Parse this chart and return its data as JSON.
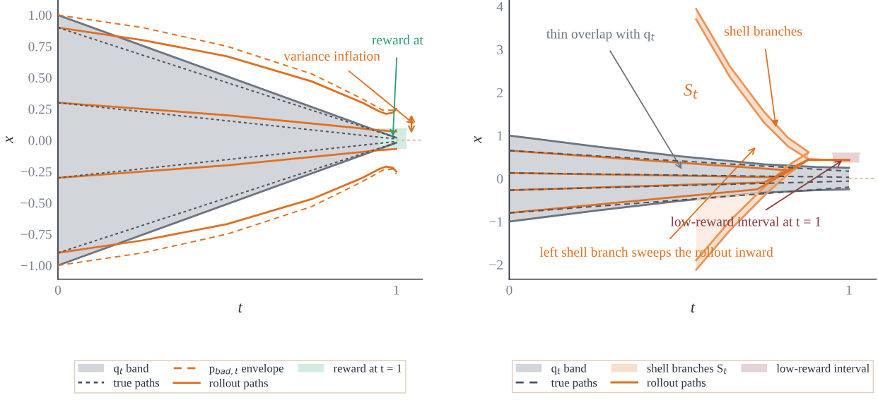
{
  "chart_data": [
    {
      "type": "line",
      "xlabel": "t",
      "ylabel": "x",
      "xlim": [
        0,
        1.077
      ],
      "ylim": [
        -1.11,
        1.12
      ],
      "xticks": [
        0,
        1
      ],
      "yticks": [
        {
          "value": -1,
          "label": "−1.00"
        },
        {
          "value": -0.75,
          "label": "−0.75"
        },
        {
          "value": -0.5,
          "label": "−0.50"
        },
        {
          "value": -0.25,
          "label": "−0.25"
        },
        {
          "value": 0,
          "label": "0.00"
        },
        {
          "value": 0.25,
          "label": "0.25"
        },
        {
          "value": 0.5,
          "label": "0.50"
        },
        {
          "value": 0.75,
          "label": "0.75"
        },
        {
          "value": 1,
          "label": "1.00"
        }
      ],
      "grid": false,
      "legend": "bottom",
      "series": [
        {
          "name": "q$_{t}$ band",
          "color": "#6b7580",
          "line_style": "solid",
          "x": [
            0,
            1
          ],
          "values": [
            1,
            0.02
          ],
          "lower": [
            -1,
            -0.02
          ],
          "upper": [
            1,
            0.02
          ]
        },
        {
          "color": "#6b7580",
          "line_style": "solid",
          "x": [
            0,
            1
          ],
          "values": [
            -1,
            -0.02
          ]
        },
        {
          "name": "true paths",
          "color": "#4a5260",
          "line_style": "dotted",
          "x": [
            0,
            1
          ],
          "values": [
            0.9,
            0.02
          ]
        },
        {
          "color": "#4a5260",
          "line_style": "dotted",
          "x": [
            0,
            1
          ],
          "values": [
            0.3,
            0.01
          ]
        },
        {
          "color": "#4a5260",
          "line_style": "dotted",
          "x": [
            0,
            1
          ],
          "values": [
            -0.3,
            -0.01
          ]
        },
        {
          "color": "#4a5260",
          "line_style": "dotted",
          "x": [
            0,
            1
          ],
          "values": [
            -0.9,
            -0.02
          ]
        },
        {
          "name": "p$_{bad,t}$ envelope",
          "color": "#e07020",
          "line_style": "dashed",
          "x": [
            0,
            0.25,
            0.5,
            0.75,
            0.9,
            0.96,
            0.99,
            1.0
          ],
          "values": [
            1.0,
            0.9,
            0.75,
            0.53,
            0.33,
            0.24,
            0.24,
            0.27
          ]
        },
        {
          "color": "#e07020",
          "line_style": "dashed",
          "x": [
            0,
            0.25,
            0.5,
            0.75,
            0.9,
            0.96,
            0.99,
            1.0
          ],
          "values": [
            -1.0,
            -0.9,
            -0.75,
            -0.53,
            -0.33,
            -0.24,
            -0.23,
            -0.27
          ]
        },
        {
          "name": "rollout paths",
          "color": "#e07020",
          "line_style": "solid",
          "x": [
            0,
            0.25,
            0.5,
            0.75,
            0.9,
            0.95,
            0.97,
            0.99,
            1.0
          ],
          "values": [
            0.9,
            0.8,
            0.67,
            0.47,
            0.3,
            0.23,
            0.21,
            0.22,
            0.25
          ]
        },
        {
          "color": "#e07020",
          "line_style": "solid",
          "x": [
            0,
            0.5,
            0.8,
            0.95,
            1.0
          ],
          "values": [
            0.3,
            0.2,
            0.12,
            0.08,
            0.07
          ]
        },
        {
          "color": "#e07020",
          "line_style": "solid",
          "x": [
            0,
            0.5,
            0.8,
            0.95,
            1.0
          ],
          "values": [
            -0.3,
            -0.2,
            -0.12,
            -0.08,
            -0.07
          ]
        },
        {
          "color": "#e07020",
          "line_style": "solid",
          "x": [
            0,
            0.25,
            0.5,
            0.75,
            0.9,
            0.95,
            0.97,
            0.99,
            1.0
          ],
          "values": [
            -0.9,
            -0.8,
            -0.67,
            -0.47,
            -0.3,
            -0.23,
            -0.21,
            -0.22,
            -0.25
          ]
        },
        {
          "name": "reward at t = 1",
          "color": "#d3ece2",
          "line_style": "solid",
          "x": [
            0.95,
            1.03
          ],
          "values": [
            0.09,
            0.09
          ],
          "lower": [
            -0.07,
            -0.07
          ],
          "upper": [
            0.09,
            0.09
          ]
        },
        {
          "color": "#e8b898",
          "line_style": "dotted",
          "x": [
            1.0,
            1.077
          ],
          "values": [
            0,
            0
          ]
        }
      ],
      "annotations": [
        "variance inflation",
        {
          "text": "reward at",
          "x": 0.99,
          "y": 0.03
        }
      ]
    },
    {
      "type": "line",
      "xlabel": "t",
      "ylabel": "x",
      "xlim": [
        0,
        1.08
      ],
      "ylim": [
        -2.34,
        4.15
      ],
      "xticks": [
        0,
        1
      ],
      "yticks": [
        {
          "value": -2,
          "label": "−2"
        },
        {
          "value": -1,
          "label": "−1"
        },
        0,
        1,
        2,
        3,
        4
      ],
      "grid": false,
      "legend": "bottom",
      "series": [
        {
          "name": "q$_{t}$ band",
          "color": "#6b7580",
          "line_style": "solid",
          "x": [
            0,
            0.25,
            0.5,
            0.75,
            0.9,
            1.0
          ],
          "values": [
            1,
            0.75,
            0.52,
            0.33,
            0.27,
            0.25
          ],
          "lower": [
            -1,
            -0.75,
            -0.52,
            -0.33,
            -0.27,
            -0.25
          ],
          "upper": [
            1,
            0.75,
            0.52,
            0.33,
            0.27,
            0.25
          ]
        },
        {
          "color": "#6b7580",
          "line_style": "solid",
          "x": [
            0,
            0.25,
            0.5,
            0.75,
            0.9,
            1.0
          ],
          "values": [
            -1,
            -0.75,
            -0.52,
            -0.33,
            -0.27,
            -0.25
          ]
        },
        {
          "name": "true paths",
          "color": "#4a5260",
          "line_style": "dashed",
          "x": [
            0,
            1
          ],
          "values": [
            0.65,
            0.17
          ]
        },
        {
          "color": "#4a5260",
          "line_style": "dashed",
          "x": [
            0,
            1
          ],
          "values": [
            0.13,
            0.03
          ]
        },
        {
          "color": "#4a5260",
          "line_style": "dashed",
          "x": [
            0,
            1
          ],
          "values": [
            -0.27,
            -0.06
          ]
        },
        {
          "color": "#4a5260",
          "line_style": "dashed",
          "x": [
            0,
            1
          ],
          "values": [
            -0.8,
            -0.2
          ]
        },
        {
          "name": "shell branches S$_{t}$",
          "color": "#e8955a",
          "line_style": "solid",
          "x": [
            0.55,
            0.65,
            0.75,
            0.82,
            0.88
          ],
          "values": [
            3.94,
            2.6,
            1.55,
            0.95,
            0.62
          ],
          "lower": [
            3.7,
            2.35,
            1.3,
            0.75,
            0.45
          ],
          "upper": [
            3.94,
            2.6,
            1.55,
            0.95,
            0.62
          ]
        },
        {
          "color": "#e8955a",
          "line_style": "solid",
          "x": [
            0.55,
            0.65,
            0.75,
            0.82,
            0.88
          ],
          "values": [
            3.7,
            2.35,
            1.3,
            0.75,
            0.45
          ]
        },
        {
          "color": "#e8955a",
          "line_style": "solid",
          "x": [
            0.55,
            0.65,
            0.75,
            0.82,
            0.88
          ],
          "values": [
            -1.9,
            -0.98,
            -0.2,
            0.3,
            0.6
          ],
          "lower": [
            -2.12,
            -1.2,
            -0.4,
            0.1,
            0.44
          ],
          "upper": [
            -1.9,
            -0.98,
            -0.2,
            0.3,
            0.6
          ]
        },
        {
          "color": "#e8955a",
          "line_style": "solid",
          "x": [
            0.55,
            0.65,
            0.75,
            0.82,
            0.88
          ],
          "values": [
            -2.12,
            -1.2,
            -0.4,
            0.1,
            0.44
          ]
        },
        {
          "color": "#f3c4a3",
          "line_style": "solid",
          "x": [
            0.55,
            0.65,
            0.73
          ],
          "values": [
            -0.48,
            -0.41,
            -0.35
          ],
          "lower": [
            -1.9,
            -0.98,
            -0.35
          ],
          "upper": [
            -0.48,
            -0.41,
            -0.35
          ]
        },
        {
          "name": "rollout paths",
          "color": "#e07020",
          "line_style": "solid",
          "x": [
            0,
            0.82,
            0.88,
            1.0
          ],
          "values": [
            0.65,
            0.19,
            0.44,
            0.43
          ]
        },
        {
          "color": "#e07020",
          "line_style": "solid",
          "x": [
            0,
            0.79,
            0.88,
            1.0
          ],
          "values": [
            0.13,
            0.03,
            0.44,
            0.43
          ]
        },
        {
          "color": "#e07020",
          "line_style": "solid",
          "x": [
            0,
            0.75,
            0.88,
            1.0
          ],
          "values": [
            -0.27,
            -0.09,
            0.44,
            0.43
          ]
        },
        {
          "color": "#e07020",
          "line_style": "solid",
          "x": [
            0,
            0.73,
            0.88,
            1.0
          ],
          "values": [
            -0.8,
            -0.25,
            0.44,
            0.43
          ]
        },
        {
          "name": "low-reward interval",
          "color": "#e6d3d7",
          "line_style": "solid",
          "x": [
            0.952,
            1.03
          ],
          "values": [
            0.58,
            0.58
          ],
          "lower": [
            0.37,
            0.37
          ],
          "upper": [
            0.58,
            0.58
          ]
        },
        {
          "color": "#e8b898",
          "line_style": "dotted",
          "x": [
            1.0,
            1.08
          ],
          "values": [
            0,
            0
          ]
        }
      ],
      "annotations": [
        "thin overlap with q$_{t}$",
        {
          "text": "shell branches",
          "x": 0.785,
          "y": 1.19
        },
        "S$_{t}$",
        {
          "text": "low-reward interval at t = 1",
          "x": 0.98,
          "y": 0.42
        },
        "left shell branch sweeps the rollout inward"
      ]
    }
  ]
}
